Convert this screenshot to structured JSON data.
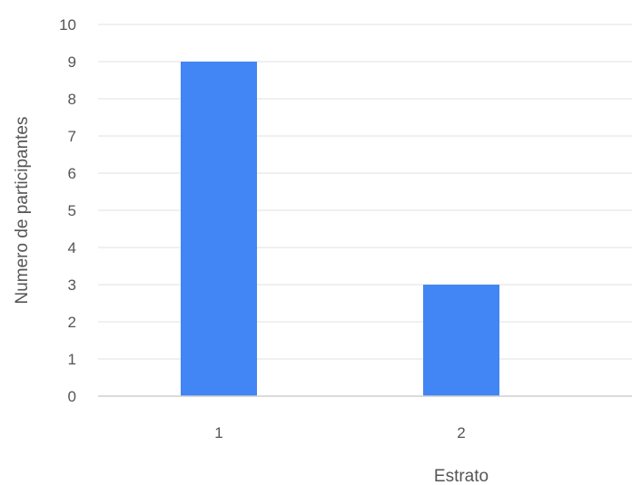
{
  "chart_data": {
    "type": "bar",
    "categories": [
      "1",
      "2"
    ],
    "values": [
      9,
      3
    ],
    "xlabel": "Estrato",
    "ylabel": "Numero de participantes",
    "ylim": [
      0,
      10
    ],
    "yticks": [
      "0",
      "1",
      "2",
      "3",
      "4",
      "5",
      "6",
      "7",
      "8",
      "9",
      "10"
    ],
    "grid": true,
    "legend": "none",
    "colors": {
      "bar": "#4285f4",
      "grid": "#ebebeb",
      "baseline": "#cfcfcf",
      "text": "#555555"
    }
  }
}
